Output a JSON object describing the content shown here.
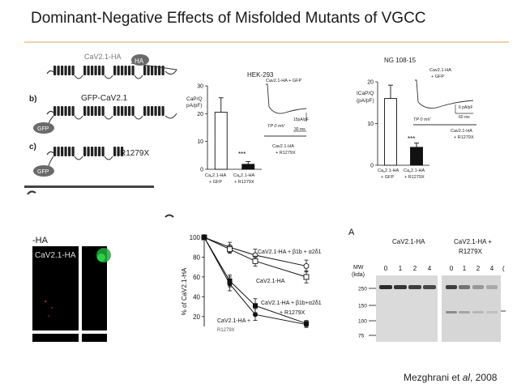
{
  "slide": {
    "title": "Dominant-Negative Effects of Misfolded Mutants of VGCC",
    "citation_pre": "Mezghrani et ",
    "citation_em": "al",
    "citation_post": ", 2008"
  },
  "schematic": {
    "label_a_tag": "HA",
    "label_a_text": "CaV2.1-HA",
    "label_b": "b)",
    "label_b_text": "GFP-CaV2.1",
    "label_c": "c)",
    "label_c_text": "R1279X",
    "gfp_label": "GFP"
  },
  "panel_hek": {
    "title": "HEK-293",
    "ylabel_1": "CaP/Q",
    "ylabel_2": "pA/pF)",
    "inset_top": "Cav2.1-HA + GFP",
    "inset_scale_1": "15pA/pF",
    "inset_tp": "TP 0 mV",
    "inset_scale_2": "30 ms",
    "inset_bottom_1": "Cav2.1-HA",
    "inset_bottom_2": "+ R1279X",
    "significance": "***"
  },
  "panel_ng": {
    "title": "NG 108-15",
    "ylabel_1": "ICaP/Q",
    "ylabel_2": "(pA/pF)",
    "inset_top_1": "Cav2.1-HA",
    "inset_top_2": "+ GFP",
    "inset_scale_1": "6 pA/pF",
    "inset_scale_2": "60 ms",
    "inset_tp": "TP 0 mV",
    "inset_bottom_1": "Cav2.1-HA",
    "inset_bottom_2": "+ R1279X",
    "significance": "***"
  },
  "micro": {
    "header": "-HA",
    "label": "CaV2.1-HA"
  },
  "panel_time": {
    "ylabel": "% of CaV2.1-HA",
    "label_top": "CaV2.1-HA + β1b + α2δ1",
    "label_mid": "CaV2.1-HA",
    "label_low_1": "CaV2.1-HA + β1b+α2δ1",
    "label_low_2": "+ R1279X",
    "label_bottom": "CaV2.1-HA +",
    "label_cut": "R1279X"
  },
  "blot": {
    "header_a": "A",
    "title_1": "CaV2.1-HA",
    "title_2a": "CaV2.1-HA +",
    "title_2b": "R1279X",
    "mw_1": "MW",
    "mw_2": "(kda)",
    "lanes_1": [
      "0",
      "1",
      "2",
      "4"
    ],
    "lanes_2": [
      "0",
      "1",
      "2",
      "4"
    ],
    "lane_cut": "(",
    "markers": [
      "250",
      "150",
      "100",
      "75"
    ]
  },
  "chart_data": [
    {
      "type": "bar",
      "title": "HEK-293",
      "ylabel": "CaP/Q pA/pF)",
      "categories": [
        "Cav2.1-HA + GFP",
        "Cav2.1-HA + R1279X"
      ],
      "values": [
        20.5,
        1.8
      ],
      "errors": [
        5.2,
        1.0
      ],
      "ylim": [
        0,
        30
      ],
      "yticks": [
        0,
        10,
        20,
        30
      ]
    },
    {
      "type": "bar",
      "title": "NG 108-15",
      "ylabel": "ICaP/Q (pA/pF)",
      "categories": [
        "Cav2.1-HA + GFP",
        "Cav2.1-HA + R1279X"
      ],
      "values": [
        16,
        4.3
      ],
      "errors": [
        3.2,
        1.0
      ],
      "ylim": [
        0,
        20
      ],
      "yticks": [
        0,
        10,
        20
      ]
    },
    {
      "type": "line",
      "ylabel": "% of CaV2.1-HA",
      "x": [
        0,
        1,
        2,
        4
      ],
      "ylim": [
        10,
        100
      ],
      "yticks": [
        20,
        40,
        60,
        80,
        100
      ],
      "series": [
        {
          "name": "CaV2.1-HA + β1b + α2δ1",
          "values": [
            100,
            90,
            82,
            71
          ],
          "errors": [
            0,
            5,
            6,
            6
          ],
          "marker": "open-circle"
        },
        {
          "name": "CaV2.1-HA",
          "values": [
            100,
            88,
            76,
            60
          ],
          "errors": [
            0,
            4,
            5,
            6
          ],
          "marker": "open-square"
        },
        {
          "name": "CaV2.1-HA + β1b+α2δ1 + R1279X",
          "values": [
            100,
            56,
            31,
            13
          ],
          "errors": [
            0,
            6,
            7,
            3
          ],
          "marker": "filled-square"
        },
        {
          "name": "CaV2.1-HA + R1279X",
          "values": [
            100,
            53,
            22,
            12
          ],
          "errors": [
            0,
            7,
            6,
            3
          ],
          "marker": "filled-circle"
        }
      ]
    }
  ]
}
